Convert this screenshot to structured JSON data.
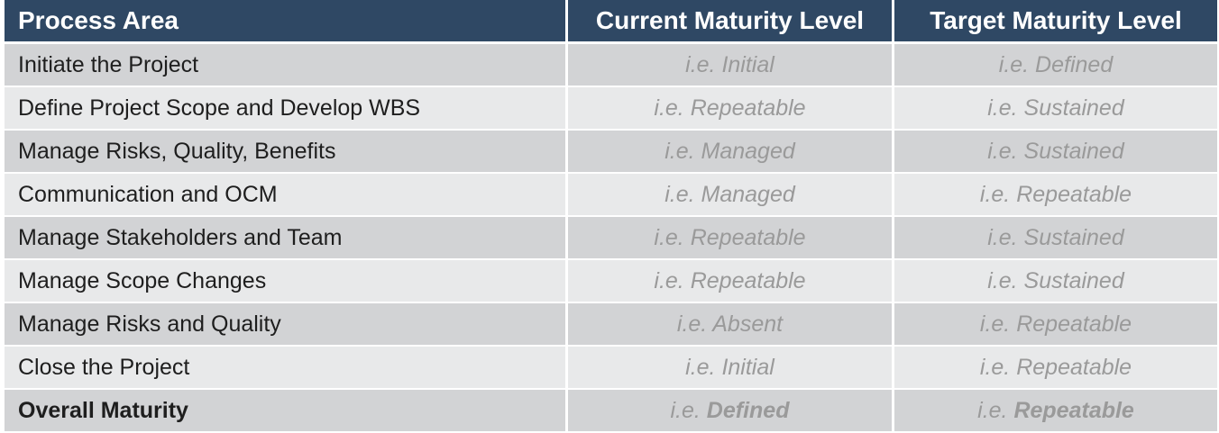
{
  "table": {
    "headers": {
      "process_area": "Process Area",
      "current_level": "Current Maturity Level",
      "target_level": "Target Maturity Level"
    },
    "rows": [
      {
        "area": "Initiate the Project",
        "current": "i.e. Initial",
        "target": "i.e. Defined"
      },
      {
        "area": "Define Project Scope and Develop WBS",
        "current": "i.e. Repeatable",
        "target": "i.e. Sustained"
      },
      {
        "area": "Manage Risks, Quality, Benefits",
        "current": "i.e. Managed",
        "target": "i.e. Sustained"
      },
      {
        "area": "Communication and OCM",
        "current": "i.e. Managed",
        "target": "i.e. Repeatable"
      },
      {
        "area": "Manage Stakeholders and Team",
        "current": "i.e. Repeatable",
        "target": "i.e. Sustained"
      },
      {
        "area": "Manage Scope Changes",
        "current": "i.e. Repeatable",
        "target": "i.e. Sustained"
      },
      {
        "area": "Manage Risks and Quality",
        "current": "i.e. Absent",
        "target": "i.e. Repeatable"
      },
      {
        "area": "Close the Project",
        "current": "i.e. Initial",
        "target": "i.e. Repeatable"
      }
    ],
    "overall": {
      "area": "Overall Maturity",
      "current_prefix": "i.e. ",
      "current_value": "Defined",
      "target_prefix": "i.e. ",
      "target_value": "Repeatable"
    }
  },
  "colors": {
    "header_bg": "#2f4864",
    "row_dark": "#d2d3d5",
    "row_light": "#e8e9ea",
    "level_text": "#9a9a9a"
  }
}
